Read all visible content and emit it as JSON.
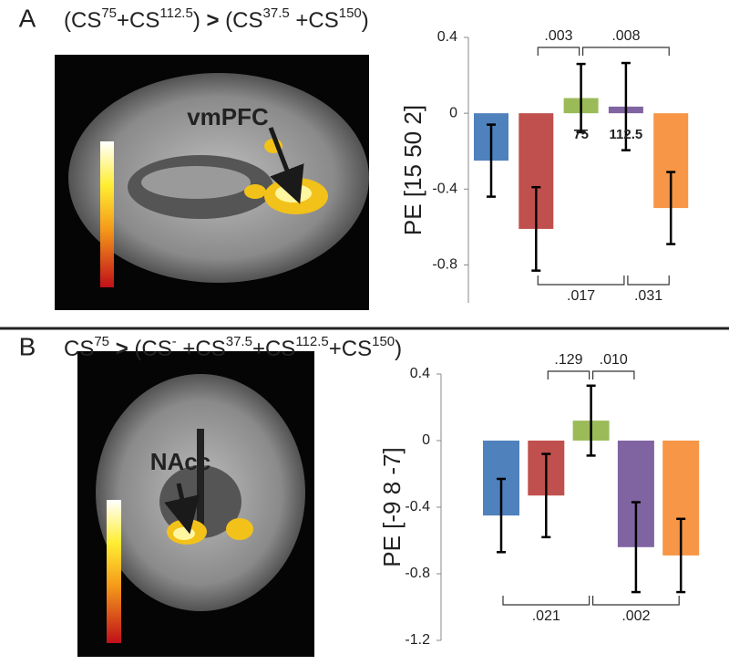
{
  "chart_data": [
    {
      "type": "bar",
      "panel": "A",
      "title": [
        {
          "text": "(CS"
        },
        {
          "text": "75",
          "sup": true
        },
        {
          "text": "+CS"
        },
        {
          "text": "112.5",
          "sup": true
        },
        {
          "text": ") "
        },
        {
          "text": ">",
          "bold": true
        },
        {
          "text": " (CS"
        },
        {
          "text": "37.5",
          "sup": true
        },
        {
          "text": " +CS"
        },
        {
          "text": "150",
          "sup": true
        },
        {
          "text": ")"
        }
      ],
      "region_label": "vmPFC",
      "y_label": "PE [15 50 2]",
      "categories": [
        null,
        null,
        "75",
        "112.5",
        null
      ],
      "values": [
        -0.25,
        -0.61,
        0.08,
        0.035,
        -0.5
      ],
      "errors": [
        0.19,
        0.22,
        0.18,
        0.23,
        0.19
      ],
      "colors": [
        "#4f81bd",
        "#c0504d",
        "#9bbb59",
        "#8064a2",
        "#f79646"
      ],
      "ylim": [
        -1.0,
        0.4
      ],
      "yticks": [
        0.4,
        0,
        -0.4,
        -0.8
      ],
      "comparisons": [
        {
          "from": 1,
          "to": 2,
          "label": ".003",
          "side": "top"
        },
        {
          "from": 2,
          "to": 4,
          "label": ".008",
          "side": "top"
        },
        {
          "from": 1,
          "to": 3,
          "label": ".017",
          "side": "bottom"
        },
        {
          "from": 3,
          "to": 4,
          "label": ".031",
          "side": "bottom"
        }
      ]
    },
    {
      "type": "bar",
      "panel": "B",
      "title": [
        {
          "text": "CS"
        },
        {
          "text": "75",
          "sup": true
        },
        {
          "text": " "
        },
        {
          "text": ">",
          "bold": true
        },
        {
          "text": " (CS"
        },
        {
          "text": "-",
          "sup": true
        },
        {
          "text": " +CS"
        },
        {
          "text": "37.5",
          "sup": true
        },
        {
          "text": "+CS"
        },
        {
          "text": "112.5",
          "sup": true
        },
        {
          "text": "+CS"
        },
        {
          "text": "150",
          "sup": true
        },
        {
          "text": ")"
        }
      ],
      "region_label": "NAcc",
      "y_label": "PE [-9 8 -7]",
      "categories": [
        null,
        null,
        null,
        null,
        null
      ],
      "values": [
        -0.45,
        -0.33,
        0.12,
        -0.64,
        -0.69
      ],
      "errors": [
        0.22,
        0.25,
        0.21,
        0.27,
        0.22
      ],
      "colors": [
        "#4f81bd",
        "#c0504d",
        "#9bbb59",
        "#8064a2",
        "#f79646"
      ],
      "ylim": [
        -1.2,
        0.4
      ],
      "yticks": [
        0.4,
        0,
        -0.4,
        -0.8,
        -1.2
      ],
      "comparisons": [
        {
          "from": 1,
          "to": 2,
          "label": ".129",
          "side": "top"
        },
        {
          "from": 2,
          "to": 3,
          "label": ".010",
          "side": "top"
        },
        {
          "from": 0,
          "to": 2,
          "label": ".021",
          "side": "bottom"
        },
        {
          "from": 2,
          "to": 4,
          "label": ".002",
          "side": "bottom"
        }
      ]
    }
  ]
}
